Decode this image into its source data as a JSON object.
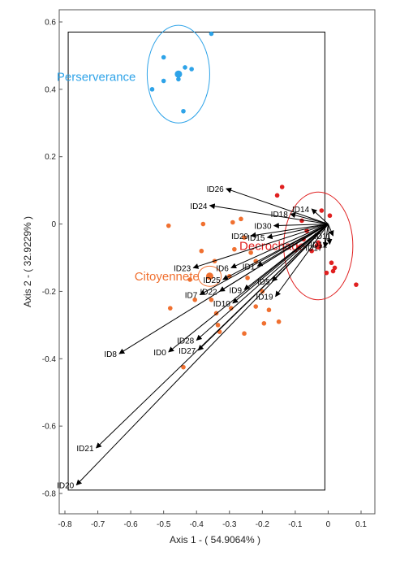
{
  "chart_data": {
    "type": "scatter",
    "title": "",
    "xlabel": "Axis 1 - ( 54.9064% )",
    "ylabel": "Axis 2 - ( 32.9229% )",
    "xlim": [
      -0.8,
      0.1
    ],
    "ylim": [
      -0.8,
      0.6
    ],
    "x_ticks": [
      "-0.8",
      "-0.7",
      "-0.6",
      "-0.5",
      "-0.4",
      "-0.3",
      "-0.2",
      "-0.1",
      "0",
      "0.1"
    ],
    "x_tick_values": [
      -0.8,
      -0.7,
      -0.6,
      -0.5,
      -0.4,
      -0.3,
      -0.2,
      -0.1,
      0,
      0.1
    ],
    "y_ticks": [
      "-0.8",
      "-0.6",
      "-0.4",
      "-0.2",
      "0",
      "0.2",
      "0.4",
      "0.6"
    ],
    "y_tick_values": [
      -0.8,
      -0.6,
      -0.4,
      -0.2,
      0,
      0.2,
      0.4,
      0.6
    ],
    "grid": false,
    "inner_box": {
      "x": [
        -0.79,
        -0.01
      ],
      "y": [
        -0.79,
        0.57
      ]
    },
    "arrow_origin": [
      0,
      0
    ],
    "arrows": [
      {
        "label": "ID26",
        "x": -0.31,
        "y": 0.105
      },
      {
        "label": "ID24",
        "x": -0.36,
        "y": 0.055
      },
      {
        "label": "ID14",
        "x": -0.05,
        "y": 0.045
      },
      {
        "label": "ID18",
        "x": -0.115,
        "y": 0.03
      },
      {
        "label": "ID30",
        "x": -0.165,
        "y": -0.005
      },
      {
        "label": "ID29",
        "x": -0.235,
        "y": -0.035
      },
      {
        "label": "ID15",
        "x": -0.185,
        "y": -0.04
      },
      {
        "label": "ID11",
        "x": 0.015,
        "y": -0.035
      },
      {
        "label": "ID17",
        "x": -0.01,
        "y": -0.07
      },
      {
        "label": "ID12",
        "x": 0.005,
        "y": -0.06
      },
      {
        "label": "ID23",
        "x": -0.41,
        "y": -0.13
      },
      {
        "label": "ID6",
        "x": -0.295,
        "y": -0.13
      },
      {
        "label": "ID1",
        "x": -0.215,
        "y": -0.125
      },
      {
        "label": "ID25",
        "x": -0.32,
        "y": -0.165
      },
      {
        "label": "ID7",
        "x": -0.39,
        "y": -0.21
      },
      {
        "label": "ID22",
        "x": -0.33,
        "y": -0.2
      },
      {
        "label": "ID9",
        "x": -0.255,
        "y": -0.195
      },
      {
        "label": "ID5",
        "x": -0.17,
        "y": -0.17
      },
      {
        "label": "ID10",
        "x": -0.29,
        "y": -0.235
      },
      {
        "label": "ID19",
        "x": -0.16,
        "y": -0.215
      },
      {
        "label": "ID28",
        "x": -0.4,
        "y": -0.345
      },
      {
        "label": "ID0",
        "x": -0.485,
        "y": -0.38
      },
      {
        "label": "ID27",
        "x": -0.395,
        "y": -0.375
      },
      {
        "label": "ID8",
        "x": -0.635,
        "y": -0.385
      },
      {
        "label": "ID21",
        "x": -0.705,
        "y": -0.665
      },
      {
        "label": "ID20",
        "x": -0.765,
        "y": -0.775
      }
    ],
    "clusters": [
      {
        "name": "Perserverance",
        "color": "#2ea3e8",
        "center": [
          -0.455,
          0.445
        ],
        "radius_x": 0.095,
        "radius_y": 0.145,
        "points": [
          [
            -0.355,
            0.565
          ],
          [
            -0.5,
            0.495
          ],
          [
            -0.535,
            0.4
          ],
          [
            -0.5,
            0.425
          ],
          [
            -0.44,
            0.335
          ],
          [
            -0.415,
            0.46
          ],
          [
            -0.435,
            0.465
          ],
          [
            -0.455,
            0.445
          ],
          [
            -0.455,
            0.43
          ]
        ]
      },
      {
        "name": "Decrochage",
        "color": "#e02020",
        "center": [
          -0.03,
          -0.065
        ],
        "radius_x": 0.105,
        "radius_y": 0.16,
        "points": [
          [
            -0.155,
            0.085
          ],
          [
            -0.14,
            0.11
          ],
          [
            -0.02,
            0.04
          ],
          [
            0.005,
            0.025
          ],
          [
            -0.08,
            0.01
          ],
          [
            -0.065,
            -0.02
          ],
          [
            -0.03,
            -0.055
          ],
          [
            0.01,
            -0.115
          ],
          [
            0.02,
            -0.13
          ],
          [
            -0.005,
            -0.145
          ],
          [
            0.015,
            -0.14
          ],
          [
            0.085,
            -0.18
          ],
          [
            -0.09,
            -0.07
          ],
          [
            -0.05,
            -0.08
          ],
          [
            -0.075,
            -0.045
          ]
        ]
      },
      {
        "name": "Citoyennete",
        "color": "#f07030",
        "center": [
          -0.36,
          -0.155
        ],
        "radius_x": 0.035,
        "radius_y": 0.03,
        "points": [
          [
            -0.485,
            -0.005
          ],
          [
            -0.38,
            0.0
          ],
          [
            -0.29,
            0.005
          ],
          [
            -0.265,
            0.015
          ],
          [
            -0.255,
            -0.04
          ],
          [
            -0.285,
            -0.075
          ],
          [
            -0.385,
            -0.08
          ],
          [
            -0.345,
            -0.11
          ],
          [
            -0.235,
            -0.085
          ],
          [
            -0.22,
            -0.11
          ],
          [
            -0.245,
            -0.16
          ],
          [
            -0.405,
            -0.225
          ],
          [
            -0.355,
            -0.225
          ],
          [
            -0.48,
            -0.25
          ],
          [
            -0.34,
            -0.265
          ],
          [
            -0.295,
            -0.25
          ],
          [
            -0.22,
            -0.245
          ],
          [
            -0.18,
            -0.255
          ],
          [
            -0.335,
            -0.3
          ],
          [
            -0.255,
            -0.325
          ],
          [
            -0.195,
            -0.295
          ],
          [
            -0.15,
            -0.29
          ],
          [
            -0.33,
            -0.32
          ],
          [
            -0.44,
            -0.425
          ],
          [
            -0.3,
            -0.155
          ],
          [
            -0.2,
            -0.2
          ],
          [
            -0.42,
            -0.165
          ]
        ]
      }
    ]
  }
}
